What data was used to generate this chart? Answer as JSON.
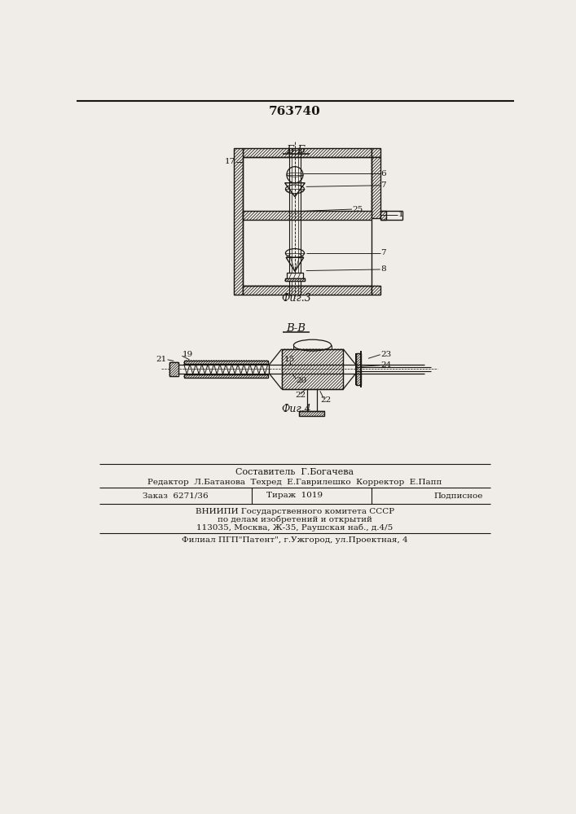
{
  "patent_number": "763740",
  "fig3_label": "Б-Б",
  "fig3_caption": "Фиг.3",
  "fig4_label": "В-В",
  "fig4_caption": "Фиг.4",
  "footer_lines": [
    "Составитель  Г.Богачева",
    "Редактор  Л.Батанова  Техред  Е.Гаврилешко  Корректор  Е.Папп",
    "ВНИИПИ Государственного комитета СССР",
    "по делам изобретений и открытий",
    "113035, Москва, Ж-35, Раушская наб., д.4/5",
    "Филиал ПГП\"Патент\", г.Ужгород, ул.Проектная, 4"
  ],
  "bg_color": "#f0ede8",
  "line_color": "#1a1510"
}
